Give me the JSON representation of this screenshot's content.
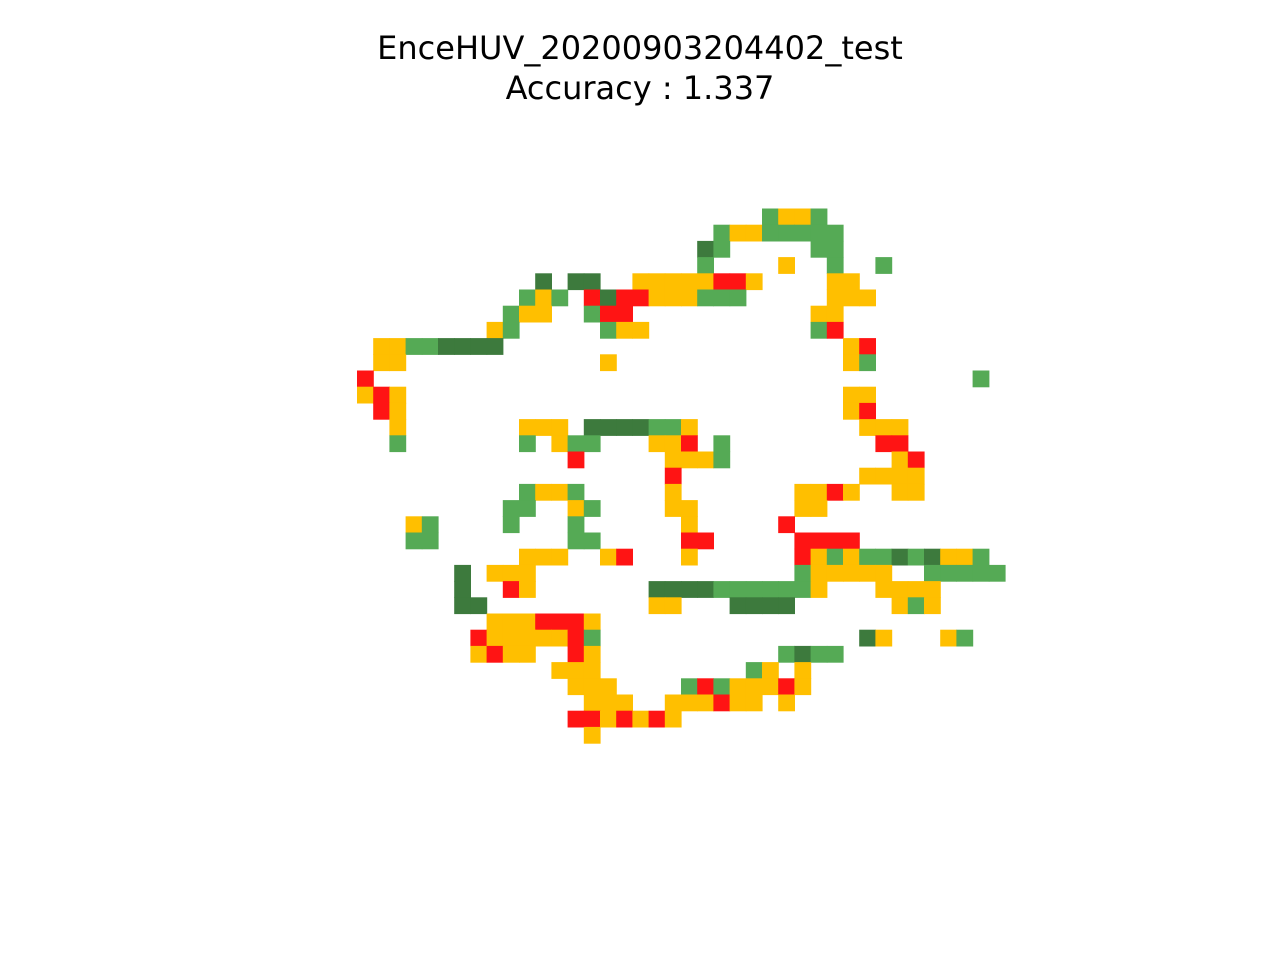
{
  "chart_data": {
    "type": "heatmap",
    "title_lines": [
      "EnceHUV_20200903204402_test",
      "Accuracy : 1.337"
    ],
    "axes_visible": false,
    "grid": false,
    "grid_size": {
      "cols": 41,
      "rows": 34
    },
    "categories": {
      "D": {
        "label": "dark green",
        "color": "#3d7a3d"
      },
      "G": {
        "label": "green",
        "color": "#55aa55"
      },
      "Y": {
        "label": "yellow",
        "color": "#ffbf00"
      },
      "R": {
        "label": "red",
        "color": "#ff1414"
      }
    },
    "cells": [
      ".........................GYYG............",
      "......................GYYGGGGG...........",
      ".....................DG.....GG...........",
      ".....................G....Y..G..G........",
      "...........D.DD..YYYYYRRY....YY..........",
      "..........GYG.RDRRYYYGGG.....YYY.........",
      ".........GYY..GRR...........YY...........",
      "........YG.....GYY..........GR...........",
      ".YYGGDDDD.....................YR.........",
      ".YY............Y..............YG.........",
      "R.....................................G..",
      "YRY...........................YY.........",
      ".RY...........................YR.........",
      "..Y.......YYY.DDDDGGY..........YYY.......",
      "..G.......G.YGG...YYR.G.........RR.......",
      ".............R.....YYYG..........YR......",
      "...................R...........YYYY......",
      "..........GYYG.....Y.......YYRY..YY......",
      ".........GG..YG....YY......YY............",
      "...YG....G...G......Y.....R..............",
      "...GG........GG.....RR.....RRRR..........",
      "..........YYY..YR...Y......RYGYGGDGDYYG..",
      "......D.YYY................GYYYYY..GGGGG.",
      "......D..RY.......DDDDGGGGGGY...YYYY.....",
      "......DD..........YY...DDDD......YGY.....",
      "........YYYRRRY.........................",
      ".......RYYYYYRG................DY...YG...",
      ".......YRYY..RY...........GDGG...........",
      "............YYY.........GY.Y.............",
      ".............YYY....GRGYYYRY.............",
      "..............YYY..YYYRYY.Y..............",
      ".............RRYRYRY.....................",
      "..............Y..........................",
      "........................................."
    ]
  }
}
